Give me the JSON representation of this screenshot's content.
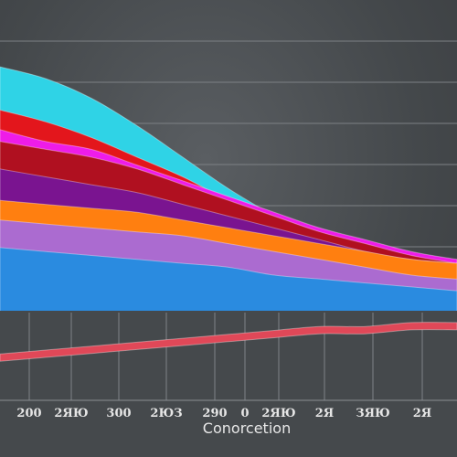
{
  "chart_data": {
    "type": "area",
    "title": "",
    "xlabel": "Conorcetion",
    "ylabel": "",
    "grid": true,
    "legend": "none",
    "tick_labels": [
      "200",
      "2ЯЮ",
      "300",
      "2ЮЗ",
      "290",
      "0",
      "2ЯЮ",
      "2Я",
      "ЗЯЮ",
      "2Я"
    ],
    "x": [
      0,
      1,
      2,
      3,
      4,
      5,
      6,
      7,
      8,
      9,
      10
    ],
    "series": [
      {
        "color": "#2fd3e6",
        "values": [
          83,
          80,
          75,
          68,
          60,
          52,
          45,
          38,
          33,
          29,
          27
        ]
      },
      {
        "color": "#e3161c",
        "values": [
          72,
          69,
          65,
          60,
          55,
          49,
          44,
          40,
          36,
          33,
          32
        ]
      },
      {
        "color": "#ee1ce8",
        "values": [
          67,
          64,
          62,
          58,
          54,
          50,
          46,
          42,
          39,
          36,
          34
        ]
      },
      {
        "color": "#b01020",
        "values": [
          64,
          62,
          60,
          57,
          53,
          49,
          45,
          41,
          38,
          35,
          33
        ]
      },
      {
        "color": "#7a1490",
        "values": [
          57,
          55,
          53,
          51,
          48,
          45,
          42,
          39,
          36,
          34,
          33
        ]
      },
      {
        "color": "#ff7f10",
        "values": [
          49,
          48,
          47,
          46,
          44,
          42,
          40,
          38,
          36,
          34,
          33
        ]
      },
      {
        "color": "#ab6bd0",
        "values": [
          44,
          43,
          42,
          41,
          40,
          38,
          36,
          34,
          32,
          30,
          29
        ]
      },
      {
        "color": "#2a8be0",
        "values": [
          37,
          36,
          35,
          34,
          33,
          32,
          30,
          29,
          28,
          27,
          26
        ]
      },
      {
        "color": "#e04858",
        "values": [
          9,
          10,
          11,
          12,
          13,
          14,
          15,
          16,
          16,
          17,
          17
        ]
      }
    ]
  }
}
